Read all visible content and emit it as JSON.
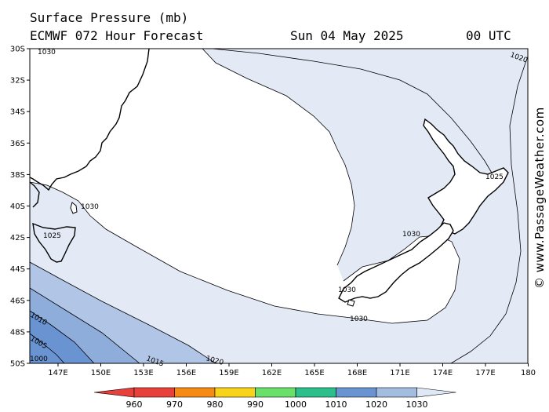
{
  "header": {
    "title": "Surface Pressure (mb)",
    "model": "ECMWF 072 Hour Forecast",
    "date": "Sun 04 May 2025",
    "time": "00 UTC"
  },
  "watermark": "© www.PassageWeather.com",
  "axes": {
    "lat_labels": [
      "30S",
      "32S",
      "34S",
      "36S",
      "38S",
      "40S",
      "42S",
      "44S",
      "46S",
      "48S",
      "50S"
    ],
    "lon_labels": [
      "147E",
      "150E",
      "153E",
      "156E",
      "159E",
      "162E",
      "165E",
      "168E",
      "171E",
      "174E",
      "177E",
      "180"
    ]
  },
  "contour_labels": {
    "c1030_tl": "1030",
    "c1020_tr": "1020",
    "c1025_nz": "1025",
    "c1030_tas": "1030",
    "c1025_tas": "1025",
    "c1030_si": "1030",
    "c1030_cook": "1030",
    "c1030_south": "1030",
    "c1010_sw": "1010",
    "c1005_sw": "1005",
    "c1000_sw": "1000",
    "c1015_b": "1015",
    "c1020_b": "1020"
  },
  "legend": {
    "labels": [
      "960",
      "970",
      "980",
      "990",
      "1000",
      "1010",
      "1020",
      "1030"
    ],
    "colors": [
      "#e8413c",
      "#f58a14",
      "#f7d419",
      "#6ae06a",
      "#2cbf8c",
      "#6a93d1",
      "#a3bde0",
      "#dfe8f5"
    ]
  },
  "colors": {
    "band_1030": "#ffffff",
    "band_1025": "#e3eaf6",
    "band_1015": "#b1c6e6",
    "band_1010": "#8fadda",
    "band_1005": "#6a93d1"
  }
}
